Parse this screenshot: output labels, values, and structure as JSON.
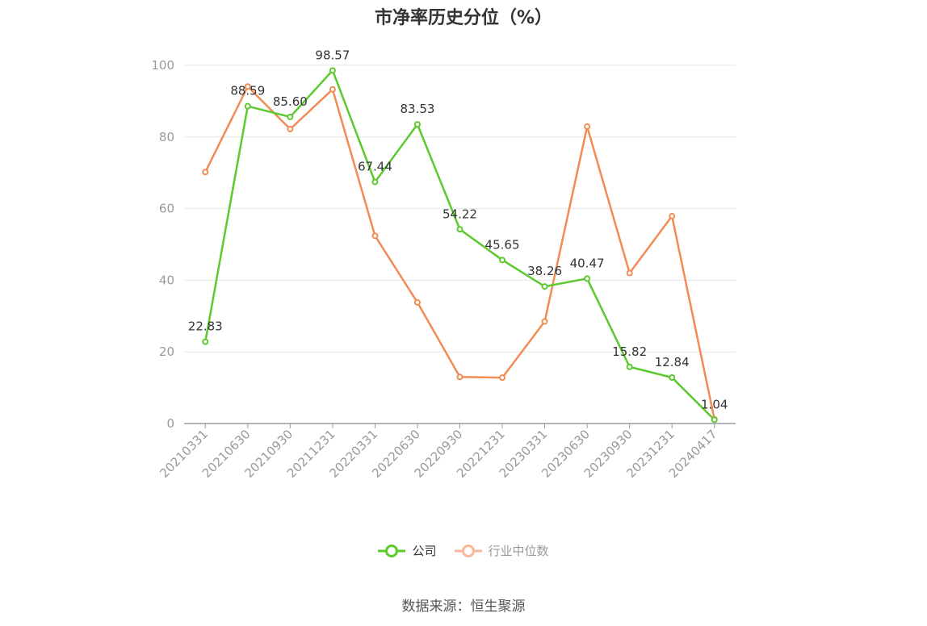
{
  "title": "市净率历史分位（%）",
  "source": "数据来源：恒生聚源",
  "colors": {
    "company": "#5cc92e",
    "industry": "#f28b54",
    "grid": "#e6e6e6",
    "axis": "#9a9aa6"
  },
  "legend": [
    {
      "label": "公司",
      "color": "#5cc92e",
      "icon": "circle-line-icon"
    },
    {
      "label": "行业中位数",
      "color": "#f7b79a",
      "icon": "circle-line-icon"
    }
  ],
  "chart_data": {
    "type": "line",
    "title": "市净率历史分位（%）",
    "xlabel": "",
    "ylabel": "",
    "ylim": [
      0,
      100
    ],
    "yticks": [
      0,
      20,
      40,
      60,
      80,
      100
    ],
    "grid": true,
    "legend_position": "bottom",
    "categories": [
      "20210331",
      "20210630",
      "20210930",
      "20211231",
      "20220331",
      "20220630",
      "20220930",
      "20221231",
      "20230331",
      "20230630",
      "20230930",
      "20231231",
      "20240417"
    ],
    "series": [
      {
        "name": "公司",
        "color": "#5cc92e",
        "values": [
          22.83,
          88.59,
          85.6,
          98.57,
          67.44,
          83.53,
          54.22,
          45.65,
          38.26,
          40.47,
          15.82,
          12.84,
          1.04
        ],
        "labels": [
          "22.83",
          "88.59",
          "85.60",
          "98.57",
          "67.44",
          "83.53",
          "54.22",
          "45.65",
          "38.26",
          "40.47",
          "15.82",
          "12.84",
          "1.04"
        ]
      },
      {
        "name": "行业中位数",
        "color": "#f28b54",
        "values": [
          70.2,
          94.1,
          82.2,
          93.3,
          52.4,
          33.8,
          13.0,
          12.8,
          28.5,
          82.9,
          42.0,
          57.9,
          1.2
        ]
      }
    ]
  }
}
